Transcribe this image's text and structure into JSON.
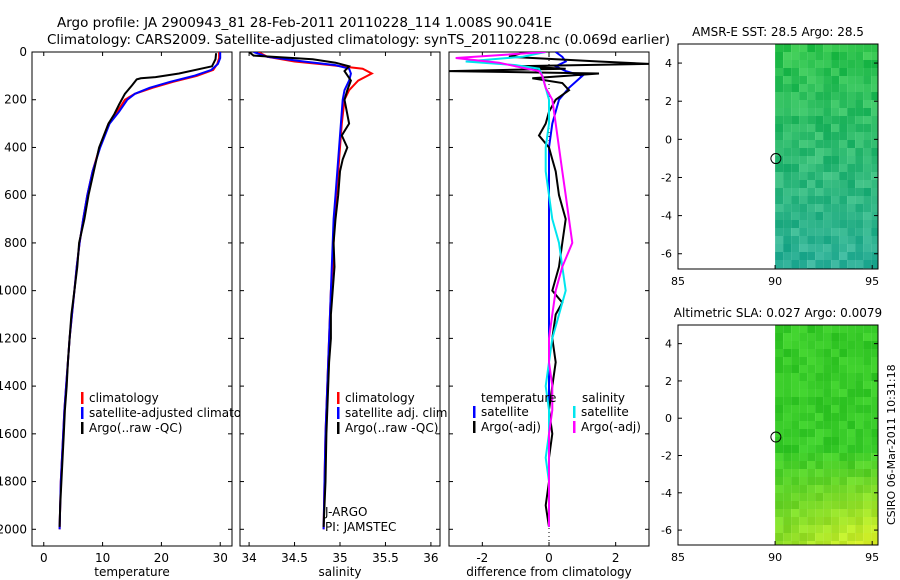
{
  "header": {
    "line1": "Argo profile: JA 2900943_81 28-Feb-2011 20110228_114 1.008S 90.041E",
    "line2": "Climatology: CARS2009. Satellite-adjusted climatology: synTS_20110228.nc (0.069d earlier)"
  },
  "credit": "CSIRO 06-Mar-2011 10:31:18",
  "colors": {
    "red": "#ff0000",
    "blue": "#0000ff",
    "black": "#000000",
    "cyan": "#00e5ee",
    "magenta": "#ff00ff"
  },
  "chart_data": [
    {
      "id": "temperature",
      "type": "line",
      "xlabel": "temperature",
      "xlim": [
        -2,
        32
      ],
      "ylim": [
        2070,
        0
      ],
      "yticks": [
        0,
        200,
        400,
        600,
        800,
        1000,
        1200,
        1400,
        1600,
        1800,
        2000
      ],
      "xticks": [
        0,
        10,
        20,
        30
      ],
      "legend": {
        "position": "bottom-right",
        "entries": [
          "climatology",
          "satellite-adjusted climatology",
          "Argo(..raw -QC)"
        ]
      },
      "series": [
        {
          "name": "climatology",
          "color": "red",
          "x": [
            29.8,
            29.8,
            29.5,
            28.8,
            26,
            22,
            18.5,
            15.5,
            13.8,
            12.5,
            11,
            9.5,
            8.3,
            7.4,
            6.7,
            6.1,
            5.6,
            5.2,
            4.8,
            4.4,
            4.1,
            3.8,
            3.5,
            3.3,
            3.1,
            2.9,
            2.8,
            2.7
          ],
          "y": [
            0,
            25,
            50,
            75,
            100,
            125,
            150,
            175,
            200,
            250,
            300,
            400,
            500,
            600,
            700,
            800,
            900,
            1000,
            1100,
            1200,
            1300,
            1400,
            1500,
            1600,
            1700,
            1800,
            1900,
            2000
          ]
        },
        {
          "name": "satellite-adjusted climatology",
          "color": "blue",
          "x": [
            30,
            30,
            29.6,
            28.5,
            25.5,
            21.5,
            18,
            15.5,
            14.2,
            12.8,
            11.2,
            9.6,
            8.3,
            7.4,
            6.7,
            6.1,
            5.6,
            5.2,
            4.8,
            4.4,
            4.1,
            3.8,
            3.5,
            3.3,
            3.1,
            2.9,
            2.8,
            2.7
          ],
          "y": [
            0,
            25,
            50,
            75,
            100,
            125,
            150,
            175,
            200,
            250,
            300,
            400,
            500,
            600,
            700,
            800,
            900,
            1000,
            1100,
            1200,
            1300,
            1400,
            1500,
            1600,
            1700,
            1800,
            1900,
            2000
          ]
        },
        {
          "name": "Argo(..raw -QC)",
          "color": "black",
          "x": [
            29.3,
            29.2,
            28.6,
            23,
            19,
            16.5,
            15.8,
            15,
            13.8,
            12.8,
            12,
            11,
            9.4,
            8.5,
            7.6,
            6.9,
            6,
            5.7,
            5.2,
            4.7,
            4.4,
            4.1,
            3.9,
            3.6,
            3.4,
            3.2,
            3,
            2.8,
            2.7
          ],
          "y": [
            5,
            30,
            60,
            90,
            105,
            110,
            115,
            140,
            175,
            220,
            260,
            300,
            400,
            500,
            600,
            700,
            800,
            900,
            1000,
            1100,
            1200,
            1300,
            1400,
            1500,
            1600,
            1700,
            1800,
            1900,
            1990
          ]
        }
      ]
    },
    {
      "id": "salinity",
      "type": "line",
      "xlabel": "salinity",
      "xlim": [
        33.9,
        36.1
      ],
      "ylim": [
        2070,
        0
      ],
      "xticks": [
        34,
        34.5,
        35,
        35.5,
        36
      ],
      "legend": {
        "position": "bottom-right",
        "entries": [
          "climatology",
          "satellite adj. clim.",
          "Argo(..raw -QC)"
        ]
      },
      "annotations": [
        "J-ARGO",
        "PI: JAMSTEC"
      ],
      "series": [
        {
          "name": "climatology",
          "color": "red",
          "x": [
            34.1,
            34.2,
            34.5,
            34.9,
            35.25,
            35.35,
            35.2,
            35.1,
            35.05,
            35.02,
            35,
            34.98,
            34.96,
            34.94,
            34.93,
            34.92,
            34.9,
            34.89,
            34.88,
            34.87,
            34.86,
            34.85,
            34.84,
            34.83,
            34.82
          ],
          "y": [
            0,
            20,
            40,
            55,
            70,
            90,
            120,
            160,
            200,
            300,
            400,
            500,
            600,
            700,
            800,
            900,
            1000,
            1100,
            1200,
            1300,
            1400,
            1500,
            1600,
            1800,
            2000
          ]
        },
        {
          "name": "satellite adj. clim.",
          "color": "blue",
          "x": [
            34.05,
            34.2,
            34.6,
            34.95,
            35.1,
            35.12,
            35.1,
            35.05,
            35.03,
            35.01,
            34.99,
            34.97,
            34.95,
            34.93,
            34.92,
            34.91,
            34.9,
            34.89,
            34.88,
            34.87,
            34.86,
            34.85,
            34.84,
            34.83,
            34.82
          ],
          "y": [
            0,
            20,
            40,
            55,
            70,
            90,
            120,
            160,
            200,
            300,
            400,
            500,
            600,
            700,
            800,
            900,
            1000,
            1100,
            1200,
            1300,
            1400,
            1500,
            1600,
            1800,
            2000
          ]
        },
        {
          "name": "Argo(..raw -QC)",
          "color": "black",
          "x": [
            34,
            34.05,
            34.7,
            34.95,
            35.1,
            35.05,
            35.12,
            35.08,
            35.05,
            35.1,
            35.02,
            35.08,
            35.03,
            35,
            34.98,
            34.95,
            34.93,
            34.94,
            34.92,
            34.9,
            34.9,
            34.88,
            34.87,
            34.86,
            34.85,
            34.84,
            34.82
          ],
          "y": [
            0,
            15,
            30,
            45,
            60,
            80,
            120,
            160,
            200,
            300,
            350,
            400,
            450,
            500,
            600,
            700,
            800,
            900,
            1000,
            1100,
            1200,
            1300,
            1400,
            1500,
            1600,
            1800,
            1990
          ]
        }
      ]
    },
    {
      "id": "difference",
      "type": "line",
      "xlabel": "difference from climatology",
      "xlim": [
        -3,
        3
      ],
      "ylim": [
        2070,
        0
      ],
      "xticks": [
        -2,
        0,
        2
      ],
      "legend": {
        "position": "bottom",
        "temperature_header": "temperature",
        "salinity_header": "salinity",
        "entries": [
          "satellite",
          "Argo(-adj)",
          "satellite",
          "Argo(-adj)"
        ]
      },
      "series": [
        {
          "name": "temperature satellite",
          "color": "blue",
          "x": [
            0.2,
            0.4,
            0.5,
            0.2,
            0.5,
            1,
            0.6,
            0.3,
            0.1,
            0,
            0,
            0,
            0,
            0,
            0,
            0,
            0,
            0,
            0,
            0,
            0,
            0,
            0,
            0,
            0,
            0,
            0
          ],
          "y": [
            0,
            20,
            40,
            60,
            80,
            100,
            150,
            200,
            300,
            400,
            500,
            600,
            700,
            800,
            900,
            1000,
            1100,
            1200,
            1300,
            1400,
            1500,
            1600,
            1700,
            1800,
            1900,
            1950,
            1990
          ]
        },
        {
          "name": "temperature Argo(-adj)",
          "color": "black",
          "x": [
            -0.7,
            -1.2,
            1.5,
            3,
            -1,
            0.5,
            -3,
            1.5,
            -0.5,
            0.4,
            0.6,
            0.2,
            0,
            -0.1,
            -0.3,
            0,
            0.1,
            0.2,
            0.3,
            0.5,
            0.4,
            0.3,
            0.1,
            0.4,
            0.2,
            0.1,
            0.2,
            0.1,
            0,
            0.1,
            0,
            0,
            -0.1,
            0
          ],
          "y": [
            0,
            20,
            40,
            50,
            60,
            70,
            80,
            90,
            110,
            130,
            160,
            200,
            250,
            300,
            350,
            400,
            450,
            500,
            600,
            700,
            800,
            900,
            1000,
            1050,
            1100,
            1200,
            1300,
            1400,
            1500,
            1600,
            1700,
            1800,
            1900,
            1990
          ]
        },
        {
          "name": "salinity satellite",
          "color": "cyan",
          "x": [
            -0.1,
            -0.8,
            -2.5,
            -1,
            -0.3,
            -0.2,
            -0.1,
            0,
            0,
            -0.1,
            -0.1,
            0,
            0.1,
            0.3,
            0.4,
            0.5,
            0.3,
            0.2,
            0.1,
            0,
            -0.1,
            0,
            0,
            -0.1,
            0,
            0,
            0
          ],
          "y": [
            0,
            20,
            40,
            55,
            70,
            100,
            150,
            200,
            300,
            400,
            500,
            600,
            700,
            800,
            900,
            1000,
            1100,
            1150,
            1200,
            1300,
            1400,
            1500,
            1600,
            1700,
            1800,
            1900,
            1990
          ]
        },
        {
          "name": "salinity Argo(-adj)",
          "color": "magenta",
          "x": [
            -0.1,
            -2.8,
            -1.5,
            -1,
            -0.3,
            -0.2,
            -0.1,
            0.1,
            0.2,
            0.3,
            0.4,
            0.5,
            0.6,
            0.7,
            0.4,
            0.2,
            0.1,
            0,
            0,
            0.1,
            0.1,
            0,
            0,
            0,
            0
          ],
          "y": [
            0,
            25,
            45,
            60,
            80,
            100,
            150,
            200,
            300,
            400,
            500,
            600,
            700,
            800,
            900,
            1000,
            1100,
            1200,
            1300,
            1400,
            1500,
            1600,
            1700,
            1800,
            1990
          ]
        }
      ]
    },
    {
      "id": "sst-map",
      "type": "heatmap",
      "title": "AMSR-E SST: 28.5 Argo: 28.5",
      "xlim": [
        85,
        95.3
      ],
      "ylim": [
        -6.8,
        5
      ],
      "xticks": [
        85,
        90,
        95
      ],
      "yticks": [
        4,
        2,
        0,
        -2,
        -4,
        -6
      ],
      "data_extent_x": [
        90,
        95.3
      ],
      "float_position": {
        "lon": 90.041,
        "lat": -1.008
      }
    },
    {
      "id": "sla-map",
      "type": "heatmap",
      "title": "Altimetric SLA: 0.027 Argo: 0.0079",
      "xlim": [
        85,
        95.3
      ],
      "ylim": [
        -6.8,
        5
      ],
      "xticks": [
        85,
        90,
        95
      ],
      "yticks": [
        4,
        2,
        0,
        -2,
        -4,
        -6
      ],
      "data_extent_x": [
        90,
        95.3
      ],
      "float_position": {
        "lon": 90.041,
        "lat": -1.008
      }
    }
  ]
}
